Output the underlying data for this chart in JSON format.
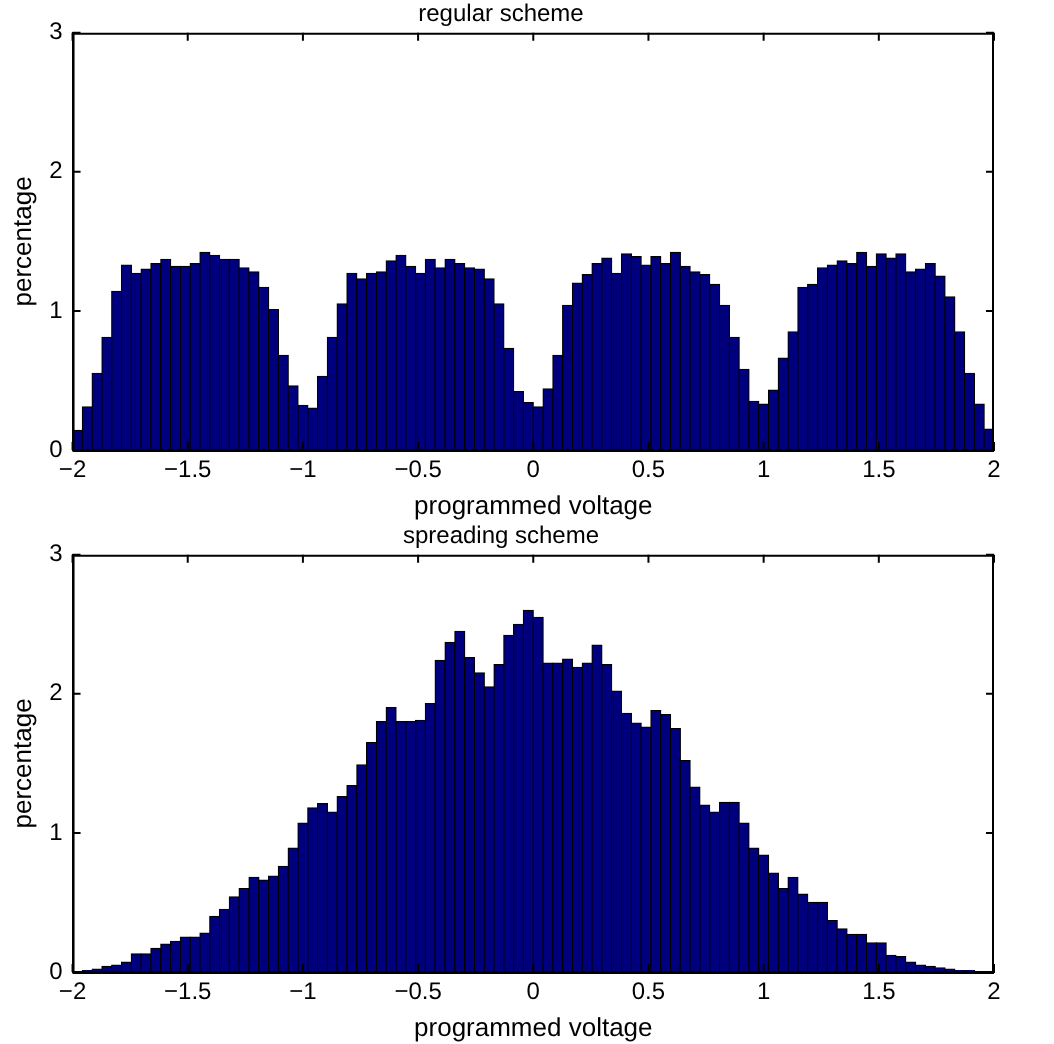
{
  "chart_data": [
    {
      "type": "histogram",
      "title": "regular scheme",
      "xlabel": "programmed voltage",
      "ylabel": "percentage",
      "color": "#00007f",
      "bins": [
        -2,
        -1.957,
        -1.915,
        -1.872,
        -1.83,
        -1.787,
        -1.745,
        -1.702,
        -1.66,
        -1.617,
        -1.574,
        -1.532,
        -1.489,
        -1.447,
        -1.404,
        -1.362,
        -1.319,
        -1.277,
        -1.234,
        -1.191,
        -1.149,
        -1.106,
        -1.064,
        -1.021,
        -0.979,
        -0.936,
        -0.894,
        -0.851,
        -0.809,
        -0.766,
        -0.723,
        -0.681,
        -0.638,
        -0.596,
        -0.553,
        -0.511,
        -0.468,
        -0.426,
        -0.383,
        -0.34,
        -0.298,
        -0.255,
        -0.213,
        -0.17,
        -0.128,
        -0.085,
        -0.043,
        0,
        0.043,
        0.085,
        0.128,
        0.17,
        0.213,
        0.255,
        0.298,
        0.34,
        0.383,
        0.426,
        0.468,
        0.511,
        0.553,
        0.596,
        0.638,
        0.681,
        0.723,
        0.766,
        0.809,
        0.851,
        0.894,
        0.936,
        0.979,
        1.021,
        1.064,
        1.106,
        1.149,
        1.191,
        1.234,
        1.277,
        1.319,
        1.362,
        1.404,
        1.447,
        1.489,
        1.532,
        1.574,
        1.617,
        1.66,
        1.702,
        1.745,
        1.787,
        1.83,
        1.872,
        1.915,
        1.957,
        2
      ],
      "values": [
        0.14,
        0.31,
        0.55,
        0.81,
        1.14,
        1.33,
        1.27,
        1.3,
        1.34,
        1.37,
        1.32,
        1.32,
        1.34,
        1.42,
        1.4,
        1.37,
        1.37,
        1.31,
        1.28,
        1.17,
        1.01,
        0.68,
        0.46,
        0.32,
        0.3,
        0.53,
        0.81,
        1.05,
        1.27,
        1.23,
        1.27,
        1.28,
        1.36,
        1.4,
        1.32,
        1.27,
        1.37,
        1.31,
        1.37,
        1.34,
        1.31,
        1.3,
        1.23,
        1.05,
        0.73,
        0.42,
        0.34,
        0.31,
        0.44,
        0.68,
        1.04,
        1.2,
        1.26,
        1.34,
        1.38,
        1.27,
        1.41,
        1.39,
        1.33,
        1.39,
        1.34,
        1.42,
        1.32,
        1.28,
        1.26,
        1.19,
        1.04,
        0.81,
        0.58,
        0.35,
        0.33,
        0.43,
        0.66,
        0.85,
        1.17,
        1.19,
        1.31,
        1.33,
        1.36,
        1.34,
        1.42,
        1.32,
        1.41,
        1.38,
        1.41,
        1.28,
        1.3,
        1.34,
        1.25,
        1.1,
        0.85,
        0.55,
        0.33,
        0.15
      ],
      "xlim": [
        -2,
        2
      ],
      "xticks": [
        {
          "value": -2,
          "label": "−2"
        },
        {
          "value": -1.5,
          "label": "−1.5"
        },
        {
          "value": -1,
          "label": "−1"
        },
        {
          "value": -0.5,
          "label": "−0.5"
        },
        0,
        0.5,
        1,
        1.5,
        2
      ],
      "ylim": [
        0,
        3
      ],
      "yticks": [
        0,
        1,
        2,
        3
      ],
      "grid": false,
      "legend": false
    },
    {
      "type": "histogram",
      "title": "spreading scheme",
      "xlabel": "programmed voltage",
      "ylabel": "percentage",
      "color": "#00007f",
      "bins": [
        -2,
        -1.957,
        -1.915,
        -1.872,
        -1.83,
        -1.787,
        -1.745,
        -1.702,
        -1.66,
        -1.617,
        -1.574,
        -1.532,
        -1.489,
        -1.447,
        -1.404,
        -1.362,
        -1.319,
        -1.277,
        -1.234,
        -1.191,
        -1.149,
        -1.106,
        -1.064,
        -1.021,
        -0.979,
        -0.936,
        -0.894,
        -0.851,
        -0.809,
        -0.766,
        -0.723,
        -0.681,
        -0.638,
        -0.596,
        -0.553,
        -0.511,
        -0.468,
        -0.426,
        -0.383,
        -0.34,
        -0.298,
        -0.255,
        -0.213,
        -0.17,
        -0.128,
        -0.085,
        -0.043,
        0,
        0.043,
        0.085,
        0.128,
        0.17,
        0.213,
        0.255,
        0.298,
        0.34,
        0.383,
        0.426,
        0.468,
        0.511,
        0.553,
        0.596,
        0.638,
        0.681,
        0.723,
        0.766,
        0.809,
        0.851,
        0.894,
        0.936,
        0.979,
        1.021,
        1.064,
        1.106,
        1.149,
        1.191,
        1.234,
        1.277,
        1.319,
        1.362,
        1.404,
        1.447,
        1.489,
        1.532,
        1.574,
        1.617,
        1.66,
        1.702,
        1.745,
        1.787,
        1.83,
        1.872,
        1.915,
        1.957,
        2
      ],
      "values": [
        0,
        0.01,
        0.02,
        0.04,
        0.05,
        0.07,
        0.13,
        0.13,
        0.17,
        0.2,
        0.22,
        0.25,
        0.25,
        0.28,
        0.4,
        0.45,
        0.54,
        0.6,
        0.68,
        0.66,
        0.69,
        0.76,
        0.89,
        1.07,
        1.18,
        1.21,
        1.15,
        1.26,
        1.34,
        1.49,
        1.65,
        1.8,
        1.9,
        1.8,
        1.8,
        1.81,
        1.93,
        2.24,
        2.37,
        2.45,
        2.26,
        2.15,
        2.05,
        2.21,
        2.42,
        2.5,
        2.6,
        2.55,
        2.22,
        2.22,
        2.25,
        2.19,
        2.22,
        2.35,
        2.21,
        2.02,
        1.86,
        1.79,
        1.76,
        1.88,
        1.85,
        1.75,
        1.52,
        1.33,
        1.2,
        1.15,
        1.22,
        1.22,
        1.07,
        0.89,
        0.84,
        0.71,
        0.6,
        0.68,
        0.56,
        0.5,
        0.5,
        0.37,
        0.31,
        0.27,
        0.27,
        0.21,
        0.21,
        0.12,
        0.11,
        0.07,
        0.05,
        0.04,
        0.03,
        0.02,
        0.01,
        0.01,
        0,
        0
      ],
      "xlim": [
        -2,
        2
      ],
      "xticks": [
        {
          "value": -2,
          "label": "−2"
        },
        {
          "value": -1.5,
          "label": "−1.5"
        },
        {
          "value": -1,
          "label": "−1"
        },
        {
          "value": -0.5,
          "label": "−0.5"
        },
        0,
        0.5,
        1,
        1.5,
        2
      ],
      "ylim": [
        0,
        3
      ],
      "yticks": [
        0,
        1,
        2,
        3
      ],
      "grid": false,
      "legend": false
    }
  ]
}
